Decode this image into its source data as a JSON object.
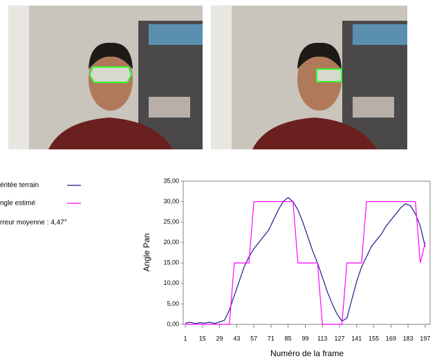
{
  "chart_data": {
    "type": "line",
    "ylabel": "Angle Pan",
    "xlabel": "Numéro de la frame",
    "annotation": "rreur moyenne : 4,47°",
    "x": [
      1,
      5,
      9,
      13,
      17,
      21,
      25,
      29,
      33,
      37,
      41,
      45,
      49,
      53,
      57,
      61,
      65,
      69,
      73,
      77,
      81,
      85,
      89,
      93,
      97,
      101,
      105,
      109,
      113,
      117,
      121,
      125,
      129,
      133,
      137,
      141,
      145,
      149,
      153,
      157,
      161,
      165,
      169,
      173,
      177,
      181,
      185,
      189,
      193,
      197
    ],
    "series": [
      {
        "name": "éritée terrain",
        "color": "#1a1a8c",
        "values": [
          0.3,
          0.5,
          0.2,
          0.4,
          0.3,
          0.5,
          0.2,
          0.6,
          1.0,
          3.5,
          7.0,
          10.5,
          14.0,
          16.5,
          18.5,
          20.0,
          21.5,
          23.0,
          25.5,
          28.0,
          30.0,
          31.0,
          30.0,
          28.0,
          25.0,
          21.5,
          18.0,
          15.0,
          11.5,
          8.0,
          5.0,
          2.5,
          0.8,
          1.5,
          6.0,
          10.5,
          14.0,
          16.5,
          19.0,
          20.5,
          22.0,
          24.0,
          25.5,
          27.0,
          28.5,
          29.5,
          29.0,
          27.0,
          24.0,
          19.0
        ]
      },
      {
        "name": "ngle estimé",
        "color": "#ff00ff",
        "values": [
          0,
          0,
          0,
          0,
          0,
          0,
          0,
          0,
          0,
          0,
          15,
          15,
          15,
          15,
          30,
          30,
          30,
          30,
          30,
          30,
          30,
          30,
          30,
          15,
          15,
          15,
          15,
          15,
          0,
          0,
          0,
          0,
          0,
          15,
          15,
          15,
          15,
          30,
          30,
          30,
          30,
          30,
          30,
          30,
          30,
          30,
          30,
          30,
          15,
          20
        ]
      }
    ],
    "xlim": [
      1,
      201
    ],
    "xticks": [
      1,
      15,
      29,
      43,
      57,
      71,
      85,
      99,
      113,
      127,
      141,
      155,
      169,
      183,
      197
    ],
    "ylim": [
      0,
      35
    ],
    "yticks": [
      {
        "value": 0,
        "label": "0,00"
      },
      {
        "value": 5,
        "label": "5,00"
      },
      {
        "value": 10,
        "label": "10,00"
      },
      {
        "value": 15,
        "label": "15,00"
      },
      {
        "value": 20,
        "label": "20,00"
      },
      {
        "value": 25,
        "label": "25,00"
      },
      {
        "value": 30,
        "label": "30,00"
      },
      {
        "value": 35,
        "label": "35,00"
      }
    ]
  }
}
